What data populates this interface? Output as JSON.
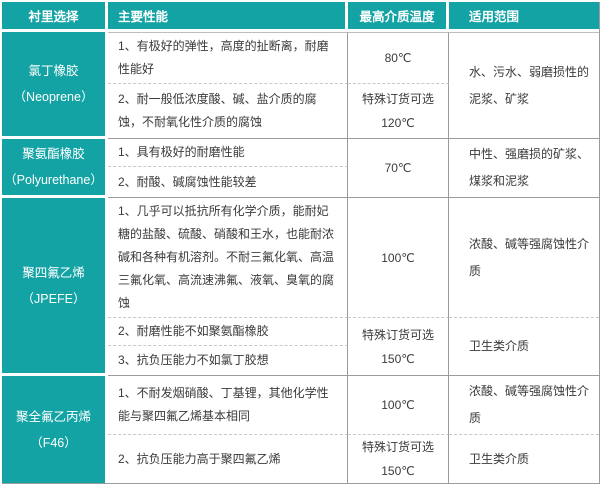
{
  "colors": {
    "header_teal": "#14a3a5",
    "border_gray": "#9c9c9c",
    "dash_gray": "#c8c8c8",
    "body_text": "#3a3a3a",
    "header_text": "#ffffff"
  },
  "table": {
    "columns": [
      "衬里选择",
      "主要性能",
      "最高介质温度",
      "适用范围"
    ],
    "materials": [
      {
        "name": "氯丁橡胶",
        "name_en": "（Neoprene）",
        "range": "水、污水、弱磨损性的泥浆、矿浆",
        "items": [
          {
            "perf": "1、有极好的弹性，高度的扯断离，耐磨性能好",
            "temp": "80℃"
          },
          {
            "perf": "2、耐一般低浓度酸、碱、盐介质的腐蚀，不耐氧化性介质的腐蚀",
            "temp": "特殊订货可选",
            "temp2": "120℃"
          }
        ]
      },
      {
        "name": "聚氨酯橡胶",
        "name_en": "（Polyurethane）",
        "range": "中性、强磨损的矿浆、煤浆和泥浆",
        "items": [
          {
            "perf": "1、具有极好的耐磨性能",
            "temp": "70℃"
          },
          {
            "perf": "2、耐酸、碱腐蚀性能较差"
          }
        ]
      },
      {
        "name": "聚四氟乙烯",
        "name_en": "（JPEFE）",
        "items": [
          {
            "perf": "1、几乎可以抵抗所有化学介质，能耐妃糖的盐酸、硫酸、硝酸和王水，也能耐浓碱和各种有机溶剂。不耐三氟化氧、高温三氟化氧、高流速沸氟、液氧、臭氧的腐蚀",
            "temp": "100℃",
            "range": "浓酸、碱等强腐蚀性介质"
          },
          {
            "perf": "2、耐磨性能不如聚氨酯橡胶",
            "temp": "特殊订货可选",
            "temp2": "150℃",
            "range": "卫生类介质"
          },
          {
            "perf": "3、抗负压能力不如氯丁胶想"
          }
        ]
      },
      {
        "name": "聚全氟乙丙烯",
        "name_en": "（F46）",
        "items": [
          {
            "perf": "1、不耐发烟硝酸、丁基锂，其他化学性能与聚四氟乙烯基本相同",
            "temp": "100℃",
            "range": "浓酸、碱等强腐蚀性介质"
          },
          {
            "perf": "2、抗负压能力高于聚四氟乙烯",
            "temp": "特殊订货可选",
            "temp2": "150℃",
            "range": "卫生类介质"
          }
        ]
      }
    ]
  }
}
